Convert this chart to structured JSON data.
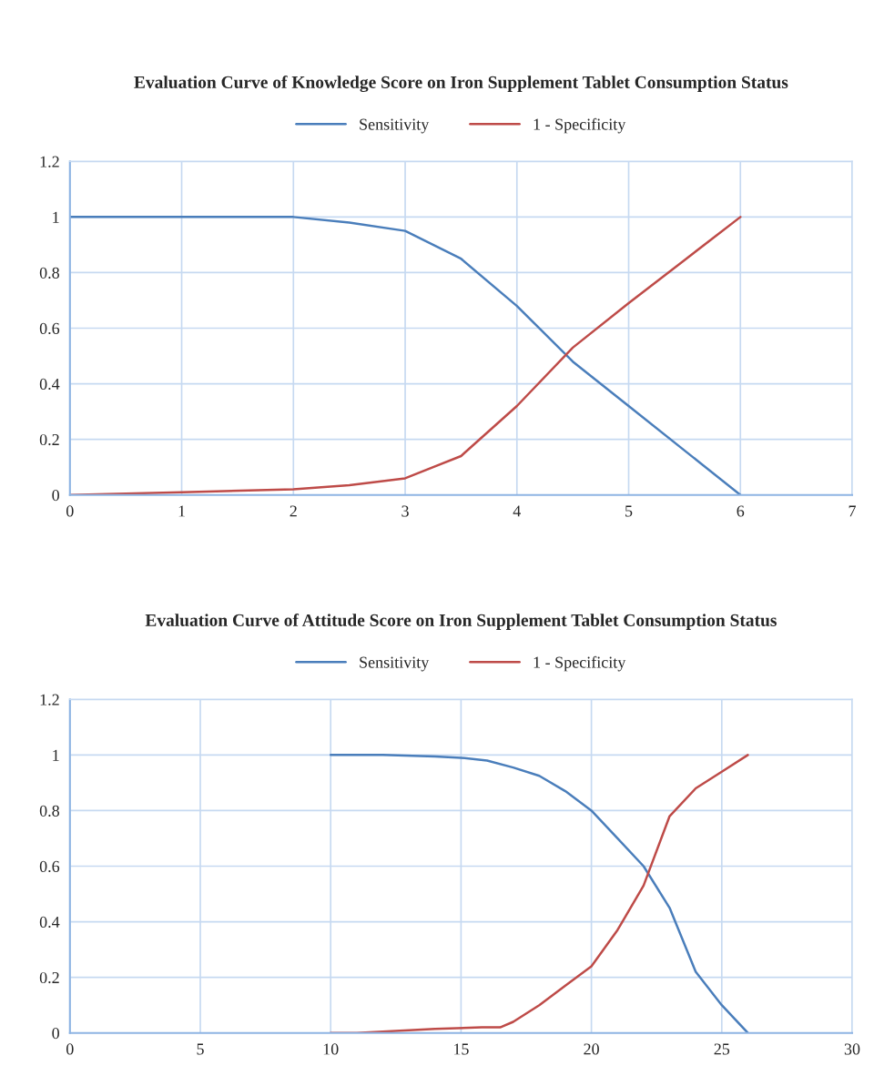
{
  "chart_data": [
    {
      "type": "line",
      "title": "Evaluation Curve of Knowledge Score on Iron Supplement Tablet Consumption Status",
      "series": [
        {
          "name": "Sensitivity",
          "color": "#4a7ebb",
          "x": [
            0,
            1,
            2,
            2.5,
            3,
            3.5,
            4,
            4.5,
            5,
            5.5,
            6
          ],
          "values": [
            1,
            1,
            1,
            0.98,
            0.95,
            0.85,
            0.68,
            0.48,
            0.32,
            0.16,
            0
          ]
        },
        {
          "name": "1 - Specificity",
          "color": "#be4b48",
          "x": [
            0,
            1,
            2,
            2.5,
            3,
            3.5,
            4,
            4.5,
            5,
            5.5,
            6
          ],
          "values": [
            0,
            0.01,
            0.02,
            0.035,
            0.06,
            0.14,
            0.32,
            0.53,
            0.69,
            0.845,
            1
          ]
        }
      ],
      "xlim": [
        0,
        7
      ],
      "xticks": [
        0,
        1,
        2,
        3,
        4,
        5,
        6,
        7
      ],
      "ylim": [
        0,
        1.2
      ],
      "yticks": [
        0,
        0.2,
        0.4,
        0.6,
        0.8,
        1,
        1.2
      ],
      "grid": true,
      "legend": "top",
      "line_style": "solid",
      "marker": "none"
    },
    {
      "type": "line",
      "title": "Evaluation Curve of Attitude Score on Iron Supplement Tablet Consumption Status",
      "series": [
        {
          "name": "Sensitivity",
          "color": "#4a7ebb",
          "x": [
            10,
            12,
            14,
            15,
            16,
            17,
            18,
            19,
            20,
            21,
            22,
            23,
            24,
            25,
            26
          ],
          "values": [
            1,
            1,
            0.995,
            0.99,
            0.98,
            0.955,
            0.925,
            0.87,
            0.8,
            0.7,
            0.6,
            0.45,
            0.22,
            0.1,
            0
          ]
        },
        {
          "name": "1 - Specificity",
          "color": "#be4b48",
          "x": [
            10,
            11,
            12,
            14,
            15.8,
            16.5,
            17,
            18,
            19,
            20,
            21,
            22,
            23,
            24,
            25,
            26
          ],
          "values": [
            0,
            0,
            0.005,
            0.015,
            0.02,
            0.02,
            0.04,
            0.1,
            0.17,
            0.24,
            0.37,
            0.53,
            0.78,
            0.88,
            0.94,
            1
          ]
        }
      ],
      "xlim": [
        0,
        30
      ],
      "xticks": [
        0,
        5,
        10,
        15,
        20,
        25,
        30
      ],
      "ylim": [
        0,
        1.2
      ],
      "yticks": [
        0,
        0.2,
        0.4,
        0.6,
        0.8,
        1,
        1.2
      ],
      "grid": true,
      "legend": "top",
      "line_style": "solid",
      "marker": "none"
    }
  ]
}
